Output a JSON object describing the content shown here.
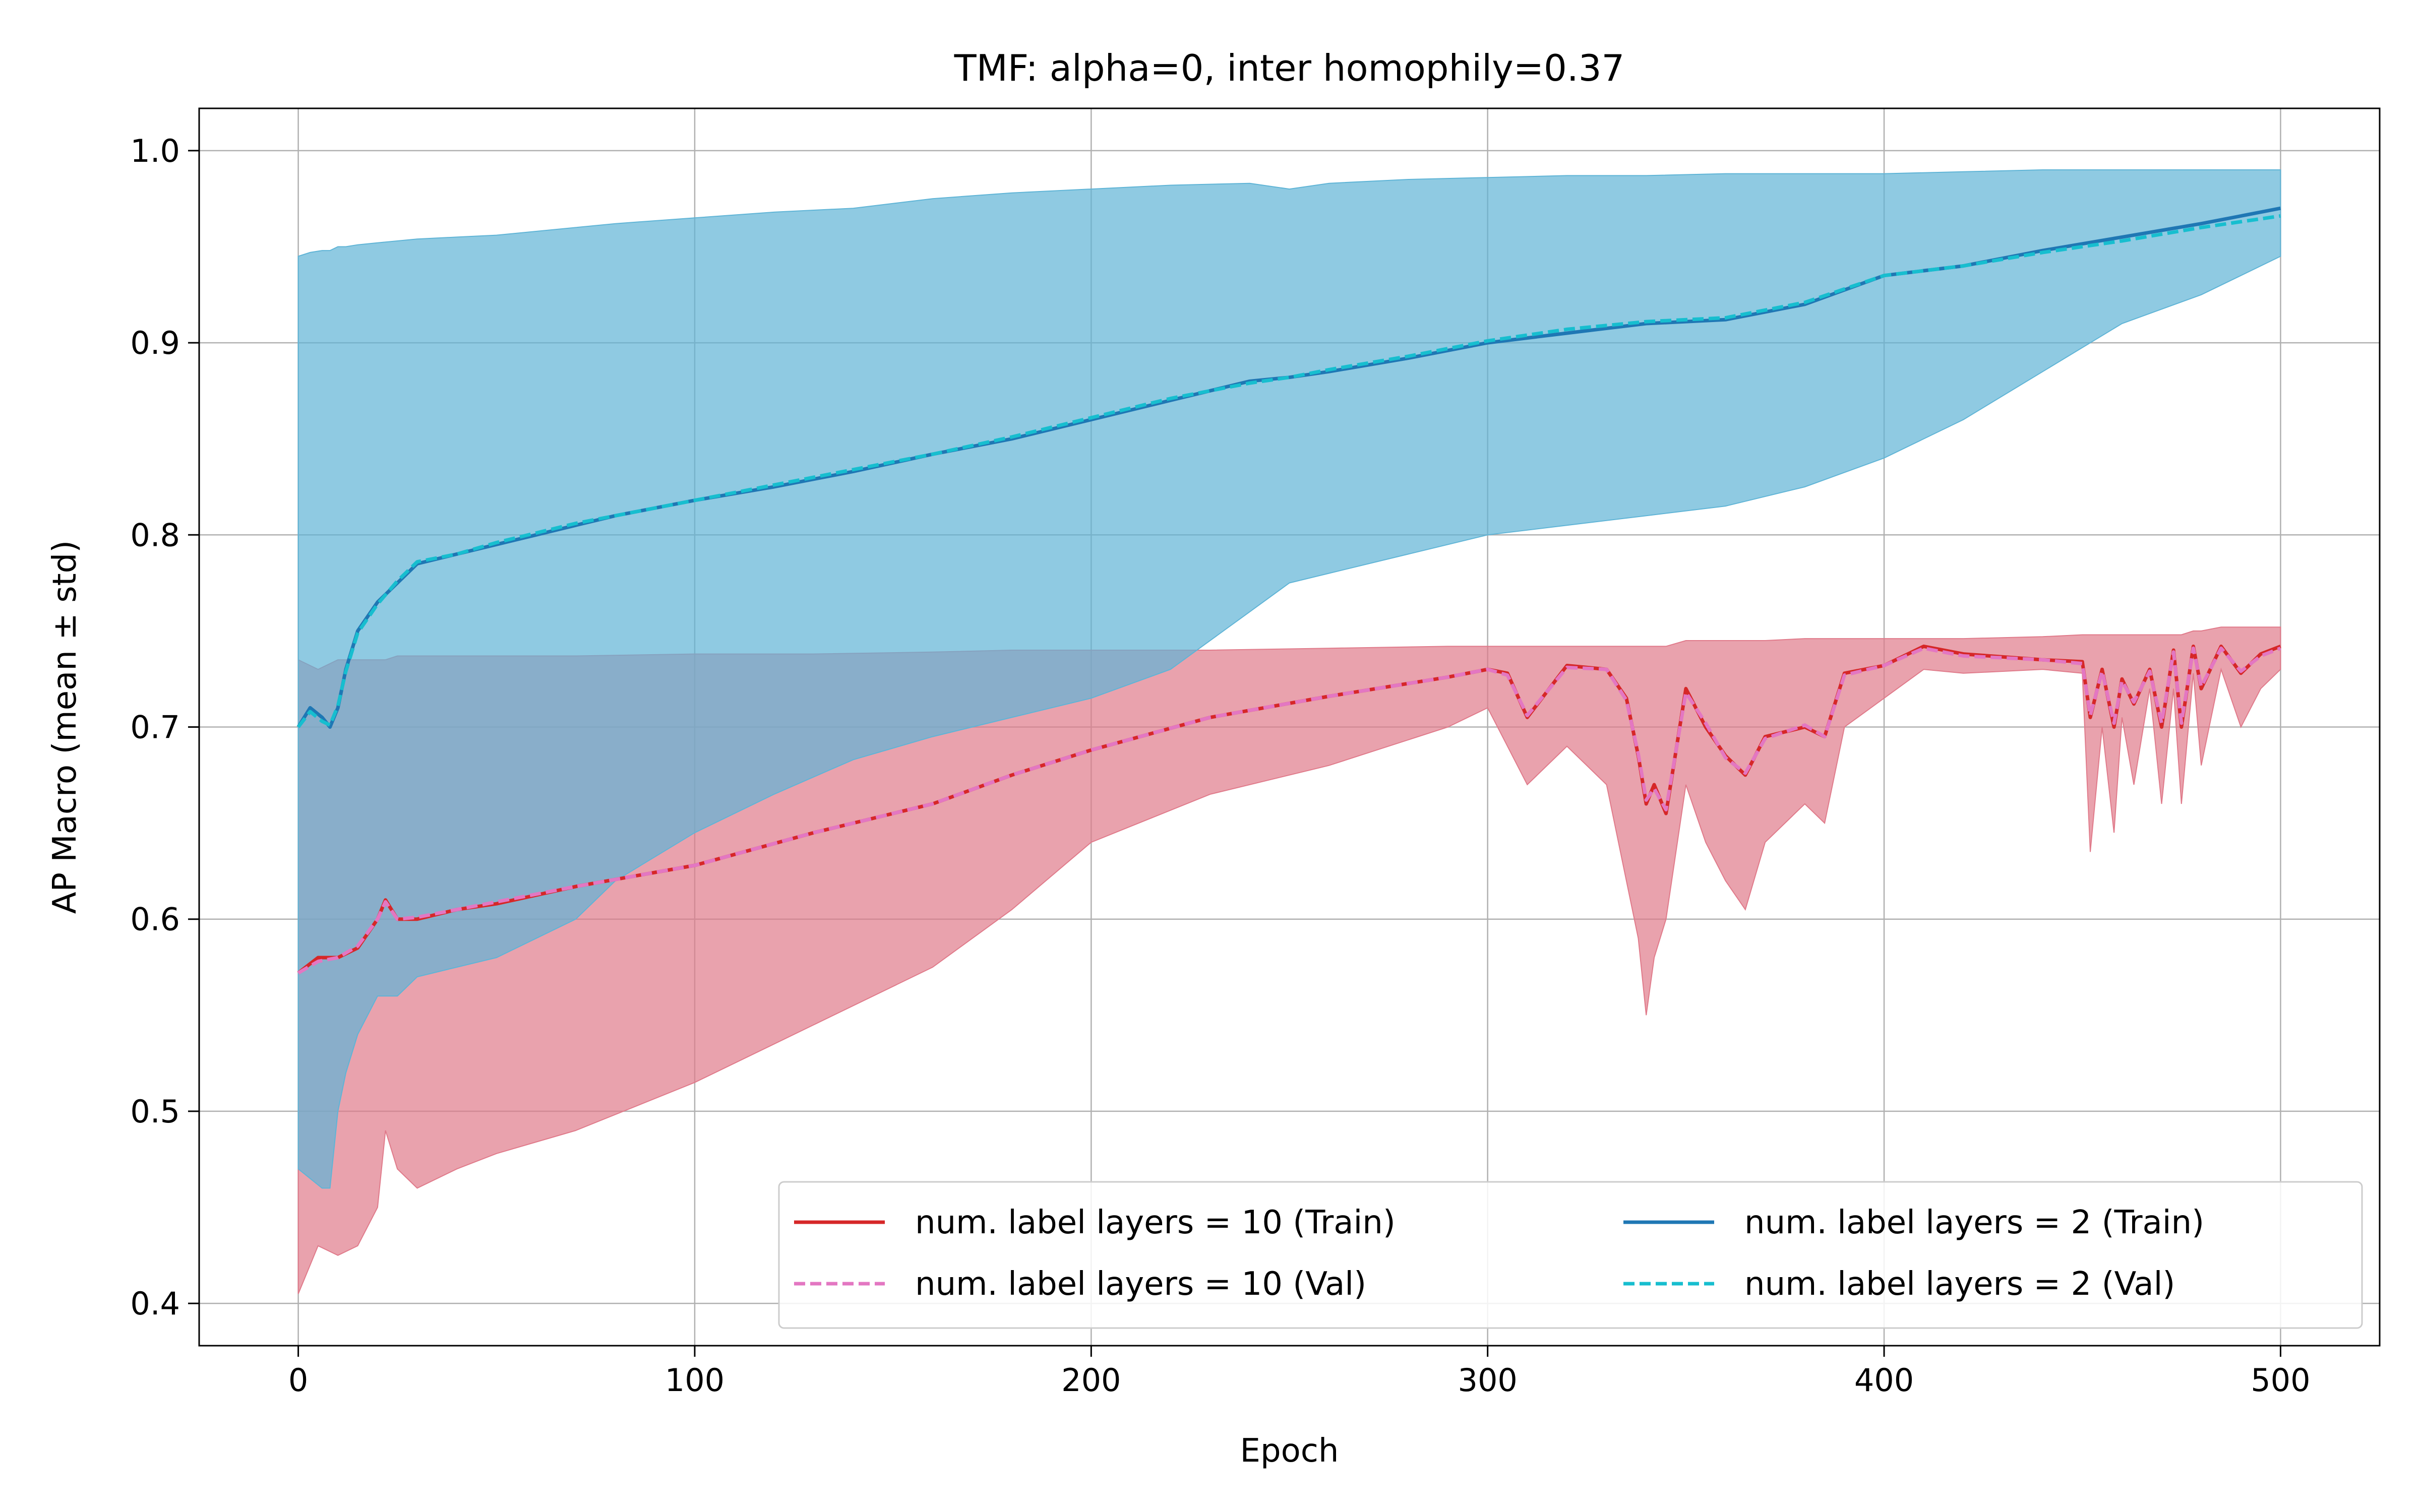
{
  "chart_data": {
    "type": "line",
    "title": "TMF: alpha=0, inter homophily=0.37",
    "xlabel": "Epoch",
    "ylabel": "AP Macro (mean ± std)",
    "xlim": [
      -25,
      525
    ],
    "ylim": [
      0.378,
      1.022
    ],
    "xticks": [
      0,
      100,
      200,
      300,
      400,
      500
    ],
    "xtick_labels": [
      "0",
      "100",
      "200",
      "300",
      "400",
      "500"
    ],
    "yticks": [
      0.4,
      0.5,
      0.6,
      0.7,
      0.8,
      0.9,
      1.0
    ],
    "ytick_labels": [
      "0.4",
      "0.5",
      "0.6",
      "0.7",
      "0.8",
      "0.9",
      "1.0"
    ],
    "grid": true,
    "legend_placement": "lower-right",
    "legend_columns": 2,
    "series": [
      {
        "name": "num. label layers = 10 (Train)",
        "color": "#d62728",
        "style": "solid",
        "band_color": "#e07a8a",
        "x": [
          0,
          5,
          10,
          15,
          20,
          22,
          25,
          30,
          40,
          50,
          70,
          100,
          130,
          160,
          180,
          200,
          230,
          260,
          290,
          300,
          305,
          310,
          320,
          330,
          335,
          338,
          340,
          342,
          345,
          350,
          355,
          360,
          365,
          370,
          380,
          385,
          390,
          400,
          410,
          420,
          440,
          450,
          452,
          455,
          458,
          460,
          463,
          467,
          470,
          473,
          475,
          478,
          480,
          485,
          490,
          495,
          500
        ],
        "mean": [
          0.572,
          0.58,
          0.58,
          0.585,
          0.6,
          0.61,
          0.6,
          0.6,
          0.605,
          0.608,
          0.617,
          0.628,
          0.645,
          0.66,
          0.675,
          0.688,
          0.705,
          0.716,
          0.726,
          0.73,
          0.728,
          0.705,
          0.732,
          0.73,
          0.715,
          0.685,
          0.66,
          0.67,
          0.655,
          0.72,
          0.7,
          0.685,
          0.675,
          0.695,
          0.7,
          0.695,
          0.728,
          0.732,
          0.742,
          0.738,
          0.735,
          0.734,
          0.705,
          0.73,
          0.7,
          0.725,
          0.712,
          0.73,
          0.7,
          0.74,
          0.7,
          0.742,
          0.72,
          0.742,
          0.728,
          0.738,
          0.742
        ],
        "lower": [
          0.405,
          0.43,
          0.425,
          0.43,
          0.45,
          0.49,
          0.47,
          0.46,
          0.47,
          0.478,
          0.49,
          0.515,
          0.545,
          0.575,
          0.605,
          0.64,
          0.665,
          0.68,
          0.7,
          0.71,
          0.69,
          0.67,
          0.69,
          0.67,
          0.62,
          0.59,
          0.55,
          0.58,
          0.6,
          0.67,
          0.64,
          0.62,
          0.605,
          0.64,
          0.66,
          0.65,
          0.7,
          0.715,
          0.73,
          0.728,
          0.73,
          0.728,
          0.635,
          0.7,
          0.645,
          0.705,
          0.67,
          0.72,
          0.66,
          0.72,
          0.66,
          0.728,
          0.68,
          0.73,
          0.7,
          0.72,
          0.73
        ],
        "upper": [
          0.735,
          0.73,
          0.735,
          0.735,
          0.735,
          0.735,
          0.737,
          0.737,
          0.737,
          0.737,
          0.737,
          0.738,
          0.738,
          0.739,
          0.74,
          0.74,
          0.74,
          0.741,
          0.742,
          0.742,
          0.742,
          0.742,
          0.742,
          0.742,
          0.742,
          0.742,
          0.742,
          0.742,
          0.742,
          0.745,
          0.745,
          0.745,
          0.745,
          0.745,
          0.746,
          0.746,
          0.746,
          0.746,
          0.746,
          0.746,
          0.747,
          0.748,
          0.748,
          0.748,
          0.748,
          0.748,
          0.748,
          0.748,
          0.748,
          0.748,
          0.748,
          0.75,
          0.75,
          0.752,
          0.752,
          0.752,
          0.752
        ]
      },
      {
        "name": "num. label layers = 10 (Val)",
        "color": "#e377c2",
        "style": "dashed",
        "x": [
          0,
          5,
          10,
          15,
          20,
          22,
          25,
          30,
          40,
          50,
          70,
          100,
          130,
          160,
          180,
          200,
          230,
          260,
          290,
          300,
          305,
          310,
          320,
          330,
          335,
          338,
          340,
          342,
          345,
          350,
          355,
          360,
          365,
          370,
          380,
          385,
          390,
          400,
          410,
          420,
          440,
          450,
          452,
          455,
          458,
          460,
          463,
          467,
          470,
          473,
          475,
          478,
          480,
          485,
          490,
          495,
          500
        ],
        "mean": [
          0.572,
          0.578,
          0.58,
          0.586,
          0.6,
          0.609,
          0.6,
          0.601,
          0.605,
          0.609,
          0.617,
          0.628,
          0.645,
          0.66,
          0.675,
          0.688,
          0.705,
          0.716,
          0.726,
          0.73,
          0.727,
          0.706,
          0.731,
          0.73,
          0.714,
          0.686,
          0.662,
          0.668,
          0.657,
          0.718,
          0.702,
          0.684,
          0.676,
          0.694,
          0.701,
          0.695,
          0.727,
          0.732,
          0.741,
          0.737,
          0.735,
          0.733,
          0.706,
          0.729,
          0.702,
          0.724,
          0.713,
          0.729,
          0.702,
          0.739,
          0.702,
          0.741,
          0.721,
          0.741,
          0.729,
          0.737,
          0.741
        ]
      },
      {
        "name": "num. label layers = 2 (Train)",
        "color": "#1f77b4",
        "style": "solid",
        "band_color": "#5fb4d6",
        "x": [
          0,
          3,
          6,
          8,
          10,
          12,
          15,
          20,
          25,
          30,
          40,
          50,
          60,
          70,
          80,
          100,
          120,
          140,
          160,
          180,
          200,
          220,
          240,
          250,
          260,
          280,
          300,
          320,
          340,
          360,
          380,
          400,
          420,
          440,
          460,
          480,
          490,
          500
        ],
        "mean": [
          0.7,
          0.71,
          0.705,
          0.7,
          0.71,
          0.73,
          0.75,
          0.765,
          0.775,
          0.785,
          0.79,
          0.795,
          0.8,
          0.805,
          0.81,
          0.818,
          0.825,
          0.833,
          0.842,
          0.85,
          0.86,
          0.87,
          0.88,
          0.882,
          0.885,
          0.892,
          0.9,
          0.905,
          0.91,
          0.912,
          0.92,
          0.935,
          0.94,
          0.948,
          0.955,
          0.962,
          0.966,
          0.97
        ],
        "lower": [
          0.47,
          0.465,
          0.46,
          0.46,
          0.5,
          0.52,
          0.54,
          0.56,
          0.56,
          0.57,
          0.575,
          0.58,
          0.59,
          0.6,
          0.62,
          0.645,
          0.665,
          0.683,
          0.695,
          0.705,
          0.715,
          0.73,
          0.76,
          0.775,
          0.78,
          0.79,
          0.8,
          0.805,
          0.81,
          0.815,
          0.825,
          0.84,
          0.86,
          0.885,
          0.91,
          0.925,
          0.935,
          0.945
        ],
        "upper": [
          0.945,
          0.947,
          0.948,
          0.948,
          0.95,
          0.95,
          0.951,
          0.952,
          0.953,
          0.954,
          0.955,
          0.956,
          0.958,
          0.96,
          0.962,
          0.965,
          0.968,
          0.97,
          0.975,
          0.978,
          0.98,
          0.982,
          0.983,
          0.98,
          0.983,
          0.985,
          0.986,
          0.987,
          0.987,
          0.988,
          0.988,
          0.988,
          0.989,
          0.99,
          0.99,
          0.99,
          0.99,
          0.99
        ]
      },
      {
        "name": "num. label layers = 2 (Val)",
        "color": "#17becf",
        "style": "dashed",
        "x": [
          0,
          3,
          6,
          8,
          10,
          12,
          15,
          20,
          25,
          30,
          40,
          50,
          60,
          70,
          80,
          100,
          120,
          140,
          160,
          180,
          200,
          220,
          240,
          250,
          260,
          280,
          300,
          320,
          340,
          360,
          380,
          400,
          420,
          440,
          460,
          480,
          490,
          500
        ],
        "mean": [
          0.7,
          0.708,
          0.703,
          0.701,
          0.711,
          0.729,
          0.749,
          0.764,
          0.776,
          0.786,
          0.79,
          0.796,
          0.801,
          0.806,
          0.81,
          0.818,
          0.826,
          0.834,
          0.842,
          0.851,
          0.861,
          0.871,
          0.879,
          0.882,
          0.886,
          0.893,
          0.901,
          0.907,
          0.911,
          0.913,
          0.921,
          0.935,
          0.94,
          0.947,
          0.953,
          0.96,
          0.963,
          0.966
        ]
      }
    ]
  }
}
